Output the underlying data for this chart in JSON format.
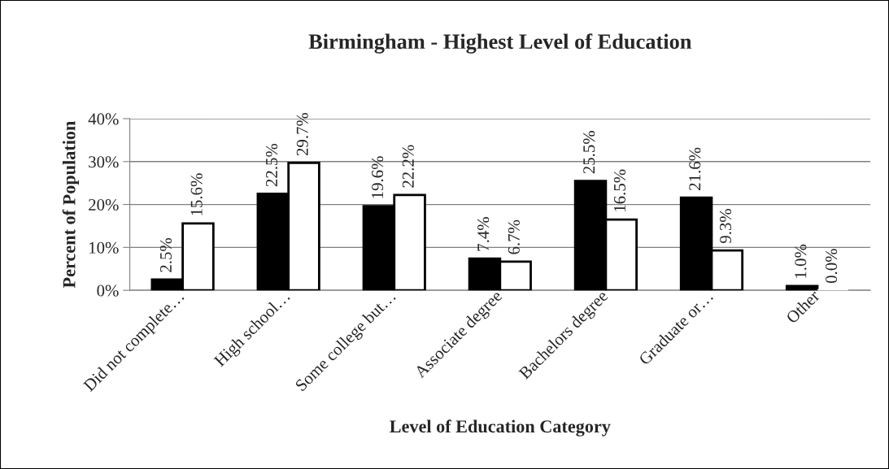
{
  "chart_data": {
    "type": "bar",
    "title": "Birmingham - Highest Level of Education",
    "xlabel": "Level of Education Category",
    "ylabel": "Percent of Population",
    "categories": [
      "Did not complete…",
      "High school…",
      "Some college but…",
      "Associate degree",
      "Bachelors degree",
      "Graduate or…",
      "Other"
    ],
    "series": [
      {
        "color": "#000000",
        "values": [
          2.5,
          22.5,
          19.6,
          7.4,
          25.5,
          21.6,
          1.0
        ],
        "value_labels": [
          "2.5%",
          "22.5%",
          "19.6%",
          "7.4%",
          "25.5%",
          "21.6%",
          "1.0%"
        ]
      },
      {
        "color": "#ffffff",
        "values": [
          15.6,
          29.7,
          22.2,
          6.7,
          16.5,
          9.3,
          0.0
        ],
        "value_labels": [
          "15.6%",
          "29.7%",
          "22.2%",
          "6.7%",
          "16.5%",
          "9.3%",
          "0.0%"
        ]
      }
    ],
    "ylim": [
      0,
      40
    ],
    "yticks": [
      {
        "value": 0,
        "label": "0%"
      },
      {
        "value": 10,
        "label": "10%"
      },
      {
        "value": 20,
        "label": "20%"
      },
      {
        "value": 30,
        "label": "30%"
      },
      {
        "value": 40,
        "label": "40%"
      }
    ],
    "grid": "y",
    "legend": false
  }
}
